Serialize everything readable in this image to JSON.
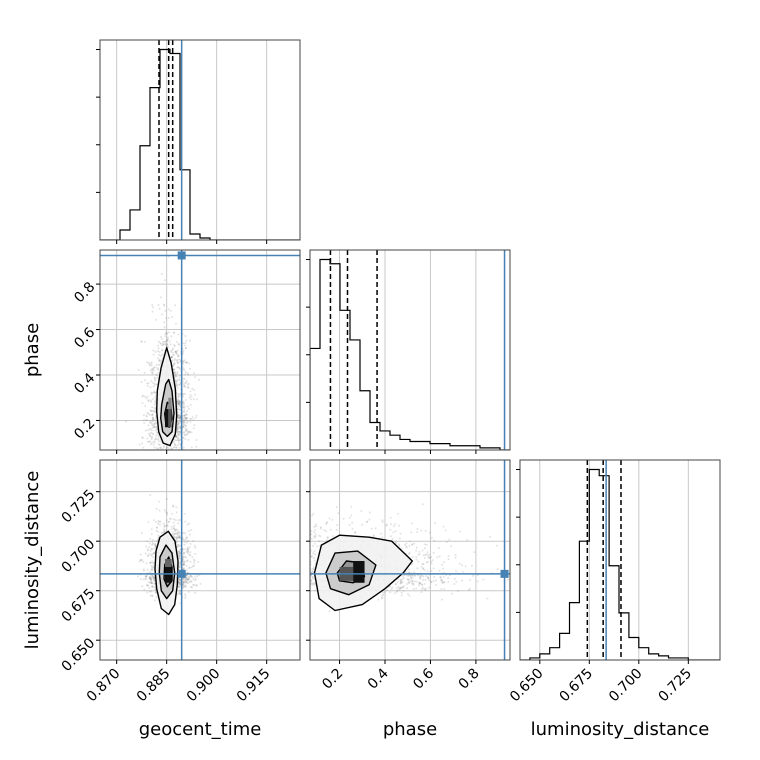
{
  "chart_data": {
    "type": "corner",
    "parameters": [
      "geocent_time",
      "phase",
      "luminosity_distance"
    ],
    "axis_labels": {
      "geocent_time": "geocent_time",
      "phase": "phase",
      "luminosity_distance": "luminosity_distance"
    },
    "ranges": {
      "geocent_time": [
        0.865,
        0.925
      ],
      "phase": [
        0.07,
        0.95
      ],
      "luminosity_distance": [
        0.64,
        0.741
      ]
    },
    "ticks": {
      "geocent_time": [
        0.87,
        0.885,
        0.9,
        0.915
      ],
      "phase": [
        0.2,
        0.4,
        0.6,
        0.8
      ],
      "luminosity_distance": [
        0.65,
        0.675,
        0.7,
        0.725
      ]
    },
    "tick_labels": {
      "geocent_time": [
        "0.870",
        "0.885",
        "0.900",
        "0.915"
      ],
      "phase": [
        "0.2",
        "0.4",
        "0.6",
        "0.8"
      ],
      "luminosity_distance": [
        "0.650",
        "0.675",
        "0.700",
        "0.725"
      ]
    },
    "truths": {
      "geocent_time": 0.8895,
      "phase": 0.926,
      "luminosity_distance": 0.6835
    },
    "quantiles": {
      "geocent_time": [
        0.8827,
        0.8856,
        0.8868
      ],
      "phase": [
        0.16,
        0.235,
        0.365
      ],
      "luminosity_distance": [
        0.674,
        0.682,
        0.691
      ]
    },
    "histograms": {
      "geocent_time": {
        "edges": [
          0.865,
          0.868,
          0.871,
          0.874,
          0.877,
          0.88,
          0.883,
          0.886,
          0.889,
          0.892,
          0.895,
          0.898,
          0.901,
          0.904,
          0.907,
          0.91,
          0.913,
          0.916,
          0.919,
          0.922,
          0.925
        ],
        "counts": [
          0,
          0,
          5,
          15,
          47,
          76,
          95,
          93,
          35,
          3,
          1,
          0,
          0,
          0,
          0,
          0,
          0,
          0,
          0,
          0
        ]
      },
      "phase": {
        "edges": [
          0.07,
          0.114,
          0.158,
          0.202,
          0.246,
          0.29,
          0.334,
          0.378,
          0.422,
          0.466,
          0.51,
          0.554,
          0.598,
          0.642,
          0.686,
          0.73,
          0.774,
          0.818,
          0.862,
          0.906,
          0.95
        ],
        "counts": [
          48,
          90,
          88,
          66,
          52,
          28,
          13,
          9,
          7,
          5,
          4,
          4,
          3,
          3,
          2,
          2,
          2,
          1,
          1,
          0
        ]
      },
      "luminosity_distance": {
        "edges": [
          0.64,
          0.645,
          0.65,
          0.655,
          0.66,
          0.665,
          0.67,
          0.675,
          0.68,
          0.685,
          0.69,
          0.695,
          0.7,
          0.705,
          0.71,
          0.715,
          0.72,
          0.725,
          0.73,
          0.735,
          0.741
        ],
        "counts": [
          0,
          1,
          3,
          6,
          13,
          28,
          58,
          93,
          90,
          46,
          23,
          11,
          6,
          3,
          2,
          1,
          1,
          0,
          0,
          0
        ]
      }
    },
    "pairs": [
      {
        "x": "geocent_time",
        "y": "phase",
        "center": [
          0.8858,
          0.225
        ],
        "spread": [
          0.0023,
          0.13
        ],
        "contours": [
          [
            [
              0.8822,
              0.33
            ],
            [
              0.8833,
              0.43
            ],
            [
              0.885,
              0.52
            ],
            [
              0.8864,
              0.45
            ],
            [
              0.8876,
              0.34
            ],
            [
              0.888,
              0.22
            ],
            [
              0.8876,
              0.14
            ],
            [
              0.886,
              0.09
            ],
            [
              0.884,
              0.1
            ],
            [
              0.8826,
              0.15
            ],
            [
              0.882,
              0.24
            ]
          ],
          [
            [
              0.8835,
              0.27
            ],
            [
              0.8847,
              0.36
            ],
            [
              0.8856,
              0.38
            ],
            [
              0.8866,
              0.33
            ],
            [
              0.8872,
              0.23
            ],
            [
              0.8866,
              0.15
            ],
            [
              0.8852,
              0.13
            ],
            [
              0.8838,
              0.15
            ],
            [
              0.8832,
              0.21
            ]
          ],
          [
            [
              0.8844,
              0.23
            ],
            [
              0.8852,
              0.28
            ],
            [
              0.8862,
              0.27
            ],
            [
              0.8866,
              0.21
            ],
            [
              0.8858,
              0.17
            ],
            [
              0.8848,
              0.18
            ]
          ]
        ],
        "density_cells": [
          {
            "x": [
              0.8845,
              0.8855
            ],
            "y": [
              0.17,
              0.25
            ],
            "shade": "#111111"
          },
          {
            "x": [
              0.8855,
              0.8865
            ],
            "y": [
              0.17,
              0.25
            ],
            "shade": "#555555"
          },
          {
            "x": [
              0.8855,
              0.8865
            ],
            "y": [
              0.25,
              0.3
            ],
            "shade": "#888888"
          }
        ]
      },
      {
        "x": "geocent_time",
        "y": "luminosity_distance",
        "center": [
          0.8858,
          0.684
        ],
        "spread": [
          0.0024,
          0.0085
        ],
        "contours": [
          [
            [
              0.8818,
              0.695
            ],
            [
              0.883,
              0.702
            ],
            [
              0.8855,
              0.705
            ],
            [
              0.8875,
              0.7
            ],
            [
              0.8884,
              0.69
            ],
            [
              0.8882,
              0.678
            ],
            [
              0.8874,
              0.668
            ],
            [
              0.8856,
              0.663
            ],
            [
              0.8834,
              0.666
            ],
            [
              0.882,
              0.676
            ],
            [
              0.8815,
              0.686
            ]
          ],
          [
            [
              0.883,
              0.692
            ],
            [
              0.8848,
              0.698
            ],
            [
              0.8866,
              0.694
            ],
            [
              0.8874,
              0.684
            ],
            [
              0.8868,
              0.675
            ],
            [
              0.885,
              0.671
            ],
            [
              0.8834,
              0.675
            ],
            [
              0.8828,
              0.684
            ]
          ],
          [
            [
              0.8844,
              0.688
            ],
            [
              0.8856,
              0.692
            ],
            [
              0.8866,
              0.687
            ],
            [
              0.8866,
              0.68
            ],
            [
              0.8852,
              0.677
            ],
            [
              0.8842,
              0.681
            ]
          ]
        ],
        "density_cells": [
          {
            "x": [
              0.8845,
              0.8865
            ],
            "y": [
              0.679,
              0.687
            ],
            "shade": "#111111"
          },
          {
            "x": [
              0.8845,
              0.8865
            ],
            "y": [
              0.687,
              0.691
            ],
            "shade": "#666666"
          }
        ]
      },
      {
        "x": "phase",
        "y": "luminosity_distance",
        "center": [
          0.27,
          0.684
        ],
        "spread": [
          0.16,
          0.0085
        ],
        "contours": [
          [
            [
              0.09,
              0.684
            ],
            [
              0.12,
              0.698
            ],
            [
              0.2,
              0.703
            ],
            [
              0.33,
              0.702
            ],
            [
              0.43,
              0.7
            ],
            [
              0.52,
              0.69
            ],
            [
              0.48,
              0.684
            ],
            [
              0.4,
              0.676
            ],
            [
              0.3,
              0.668
            ],
            [
              0.18,
              0.665
            ],
            [
              0.11,
              0.671
            ]
          ],
          [
            [
              0.14,
              0.684
            ],
            [
              0.18,
              0.694
            ],
            [
              0.28,
              0.695
            ],
            [
              0.36,
              0.688
            ],
            [
              0.33,
              0.678
            ],
            [
              0.24,
              0.673
            ],
            [
              0.16,
              0.676
            ]
          ],
          [
            [
              0.19,
              0.684
            ],
            [
              0.23,
              0.69
            ],
            [
              0.3,
              0.689
            ],
            [
              0.31,
              0.682
            ],
            [
              0.26,
              0.679
            ],
            [
              0.2,
              0.68
            ]
          ]
        ],
        "density_cells": [
          {
            "x": [
              0.2,
              0.26
            ],
            "y": [
              0.68,
              0.687
            ],
            "shade": "#555555"
          },
          {
            "x": [
              0.26,
              0.31
            ],
            "y": [
              0.679,
              0.69
            ],
            "shade": "#111111"
          }
        ]
      }
    ],
    "colors": {
      "truth": "#4682b4",
      "line": "#000000",
      "grid": "#c8c8c8",
      "scatter": "#808080"
    },
    "grid": true
  }
}
